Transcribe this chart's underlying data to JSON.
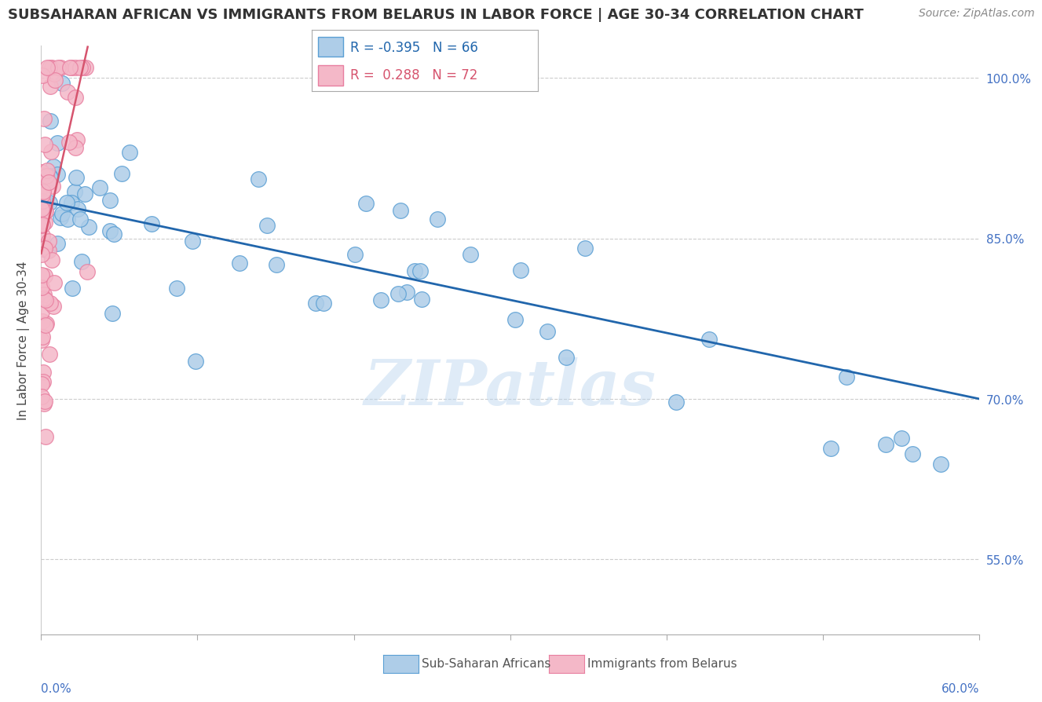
{
  "title": "SUBSAHARAN AFRICAN VS IMMIGRANTS FROM BELARUS IN LABOR FORCE | AGE 30-34 CORRELATION CHART",
  "source": "Source: ZipAtlas.com",
  "ylabel": "In Labor Force | Age 30-34",
  "right_yticks": [
    100.0,
    85.0,
    70.0,
    55.0
  ],
  "xlim": [
    0.0,
    60.0
  ],
  "ylim": [
    48.0,
    103.0
  ],
  "blue_label": "Sub-Saharan Africans",
  "pink_label": "Immigrants from Belarus",
  "blue_R": -0.395,
  "blue_N": 66,
  "pink_R": 0.288,
  "pink_N": 72,
  "blue_color": "#aecde8",
  "pink_color": "#f4b8c8",
  "blue_edge_color": "#5a9fd4",
  "pink_edge_color": "#e87fa0",
  "blue_line_color": "#2166ac",
  "pink_line_color": "#d6546e",
  "watermark": "ZIPatlas",
  "blue_line_x": [
    0.0,
    60.0
  ],
  "blue_line_y": [
    88.5,
    70.0
  ],
  "pink_line_x": [
    0.0,
    3.0
  ],
  "pink_line_y": [
    83.5,
    103.0
  ],
  "grid_color": "#cccccc",
  "title_fontsize": 13,
  "source_fontsize": 10,
  "tick_fontsize": 11,
  "ylabel_fontsize": 11
}
